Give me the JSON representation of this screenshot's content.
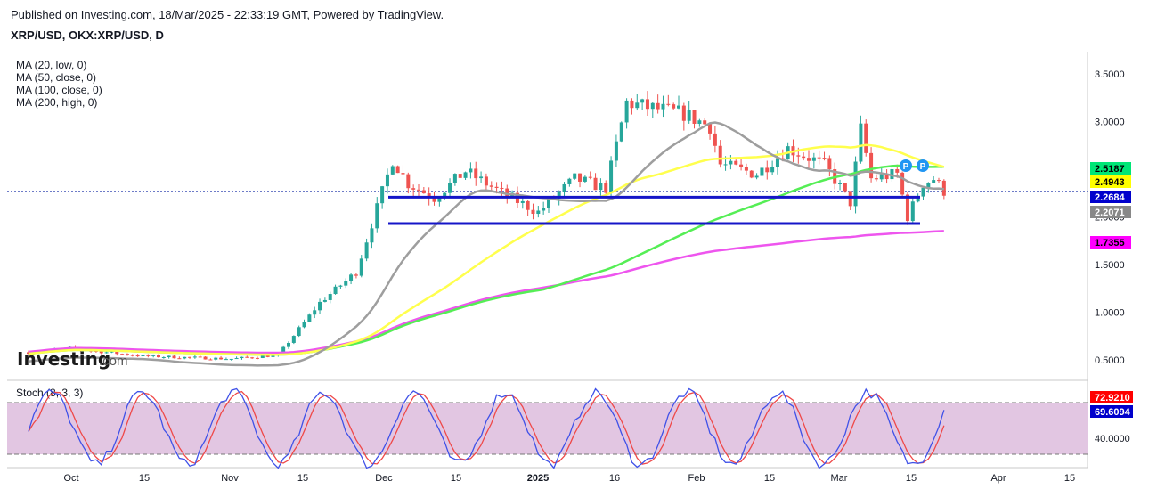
{
  "header": {
    "published": "Published on Investing.com, 18/Mar/2025 - 22:33:19 GMT, Powered by TradingView.",
    "symbol": "XRP/USD, OKX:XRP/USD, D"
  },
  "indicators": {
    "ma_labels": [
      "MA (20, low, 0)",
      "MA (50, close, 0)",
      "MA (100, close, 0)",
      "MA (200, high, 0)"
    ],
    "stoch_label": "Stoch (8, 3, 3)"
  },
  "watermark": {
    "brand": "Investing",
    "suffix": ".com"
  },
  "colors": {
    "ma20": "#9e9e9e",
    "ma50": "#ffff4d",
    "ma100": "#55ee55",
    "ma200": "#ee55ee",
    "up": "#26a69a",
    "down": "#ef5350",
    "support": "#1515c8",
    "stoch_bg": "#e2c6e2",
    "stoch_k": "#3f51e8",
    "stoch_d": "#ef4848",
    "pivot": "#2196f3"
  },
  "price_axis": {
    "ticks": [
      "3.5000",
      "3.0000",
      "2.5000",
      "2.0000",
      "1.5000",
      "1.0000",
      "0.5000"
    ],
    "tick_values": [
      3.5,
      3.0,
      2.5,
      2.0,
      1.5,
      1.0,
      0.5
    ],
    "badges": [
      {
        "text": "2.5187",
        "value": 2.5187,
        "bg": "#00e676",
        "fg": "#000000"
      },
      {
        "text": "2.4943",
        "value": 2.4943,
        "bg": "#ffff00",
        "fg": "#000000"
      },
      {
        "text": "2.2684",
        "value": 2.2684,
        "bg": "#0000cc",
        "fg": "#ffffff"
      },
      {
        "text": "2.2071",
        "value": 2.2071,
        "bg": "#888888",
        "fg": "#ffffff"
      },
      {
        "text": "1.7355",
        "value": 1.7355,
        "bg": "#ff00ff",
        "fg": "#000000"
      }
    ]
  },
  "stoch_axis": {
    "tick": "40.0000",
    "badges": [
      {
        "text": "72.9210",
        "value": 72.921,
        "bg": "#ff0000",
        "fg": "#ffffff"
      },
      {
        "text": "69.6094",
        "value": 69.6094,
        "bg": "#0000cc",
        "fg": "#ffffff"
      }
    ]
  },
  "time_axis": [
    "Oct",
    "15",
    "Nov",
    "15",
    "Dec",
    "15",
    "2025",
    "16",
    "Feb",
    "15",
    "Mar",
    "15",
    "Apr",
    "15"
  ],
  "chart_data": {
    "type": "candlestick",
    "title": "XRP/USD, OKX:XRP/USD, D",
    "ylim": [
      0.3,
      3.75
    ],
    "last_price": 2.2684,
    "support_levels": [
      2.2071,
      1.93
    ],
    "pivot_markers": [
      "P",
      "P"
    ],
    "series": [
      {
        "name": "MA (20, low, 0)",
        "value_last": 2.2071
      },
      {
        "name": "MA (50, close, 0)",
        "value_last": 2.4943
      },
      {
        "name": "MA (100, close, 0)",
        "value_last": 2.5187
      },
      {
        "name": "MA (200, high, 0)",
        "value_last": 1.7355
      }
    ],
    "price_path_keypoints": [
      [
        "2024-09-23",
        0.58
      ],
      [
        "2024-10-01",
        0.62
      ],
      [
        "2024-10-15",
        0.54
      ],
      [
        "2024-11-01",
        0.51
      ],
      [
        "2024-11-10",
        0.55
      ],
      [
        "2024-11-18",
        1.1
      ],
      [
        "2024-11-25",
        1.42
      ],
      [
        "2024-12-02",
        2.6
      ],
      [
        "2024-12-05",
        2.35
      ],
      [
        "2024-12-10",
        2.2
      ],
      [
        "2024-12-16",
        2.48
      ],
      [
        "2024-12-23",
        2.25
      ],
      [
        "2024-12-30",
        2.05
      ],
      [
        "2025-01-06",
        2.4
      ],
      [
        "2025-01-12",
        2.3
      ],
      [
        "2025-01-16",
        3.2
      ],
      [
        "2025-01-20",
        3.15
      ],
      [
        "2025-01-27",
        3.08
      ],
      [
        "2025-02-01",
        2.95
      ],
      [
        "2025-02-03",
        2.55
      ],
      [
        "2025-02-10",
        2.45
      ],
      [
        "2025-02-16",
        2.72
      ],
      [
        "2025-02-23",
        2.55
      ],
      [
        "2025-02-28",
        2.15
      ],
      [
        "2025-03-02",
        2.92
      ],
      [
        "2025-03-04",
        2.4
      ],
      [
        "2025-03-09",
        2.45
      ],
      [
        "2025-03-11",
        2.0
      ],
      [
        "2025-03-14",
        2.35
      ],
      [
        "2025-03-16",
        2.4
      ],
      [
        "2025-03-18",
        2.27
      ]
    ],
    "stochastic": {
      "name": "Stoch (8, 3, 3)",
      "k_last": 69.6094,
      "d_last": 72.921,
      "overbought": 80,
      "oversold": 20
    }
  }
}
